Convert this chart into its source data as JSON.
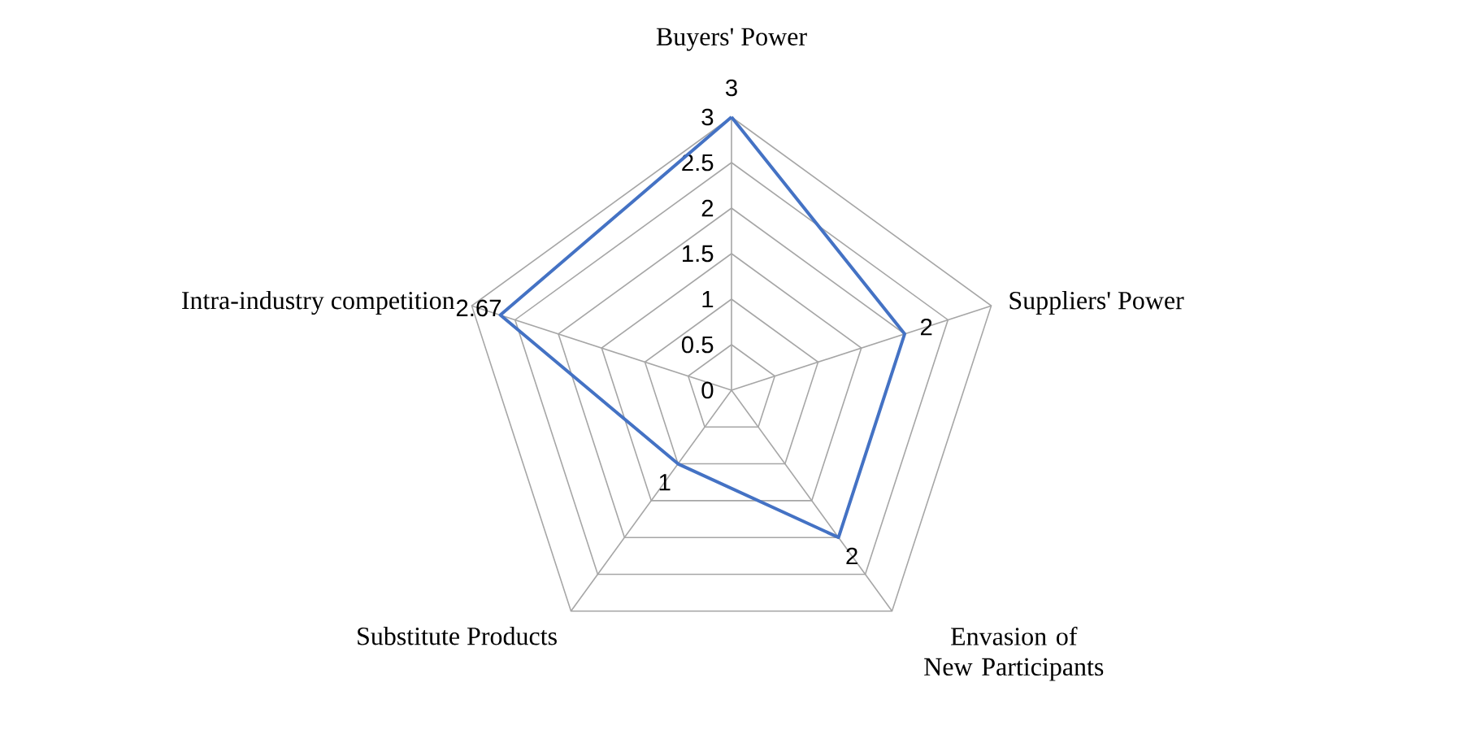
{
  "chart_data": {
    "type": "radar",
    "categories": [
      "Buyers' Power",
      "Suppliers' Power",
      "Envasion of New Participants",
      "Substitute Products",
      "Intra-industry competition"
    ],
    "series": [
      {
        "color": "#4472c4",
        "values": [
          3,
          2,
          2,
          1,
          2.67
        ]
      }
    ],
    "ylim": [
      0,
      3
    ],
    "yticks": [
      0,
      0.5,
      1,
      1.5,
      2,
      2.5,
      3
    ],
    "grid": true,
    "data_labels": true,
    "marker": "none",
    "line_style": "solid"
  }
}
